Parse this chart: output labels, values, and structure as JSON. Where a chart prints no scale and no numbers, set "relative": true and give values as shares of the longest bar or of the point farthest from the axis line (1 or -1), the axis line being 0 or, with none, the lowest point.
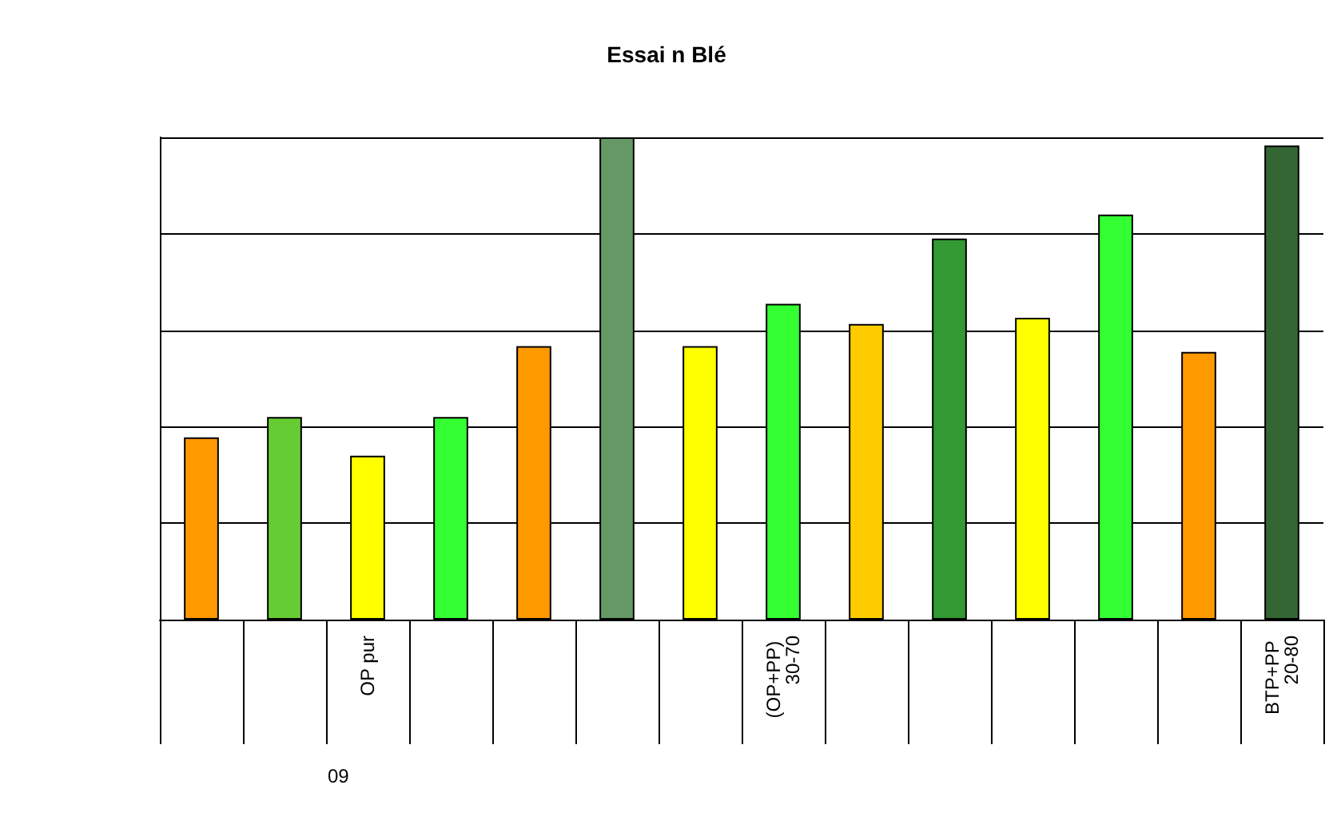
{
  "chart_data": {
    "type": "bar",
    "title": "Essai n Blé",
    "relative": true,
    "grid": "y",
    "categories": [
      null,
      null,
      "OP pur",
      null,
      null,
      null,
      null,
      "(OP+PP) 30-70",
      null,
      null,
      null,
      null,
      null,
      "BTP+PP 20-80"
    ],
    "values": [
      0.378,
      0.42,
      0.34,
      0.42,
      0.567,
      1,
      0.567,
      0.655,
      0.613,
      0.79,
      0.626,
      0.84,
      0.555,
      0.983
    ],
    "colors": [
      "#ff9900",
      "#66cc33",
      "#ffff00",
      "#33ff33",
      "#ff9900",
      "#669966",
      "#ffff00",
      "#33ff33",
      "#ffcc00",
      "#339933",
      "#ffff00",
      "#33ff33",
      "#ff9900",
      "#336633"
    ],
    "annotations": [
      "09"
    ]
  }
}
